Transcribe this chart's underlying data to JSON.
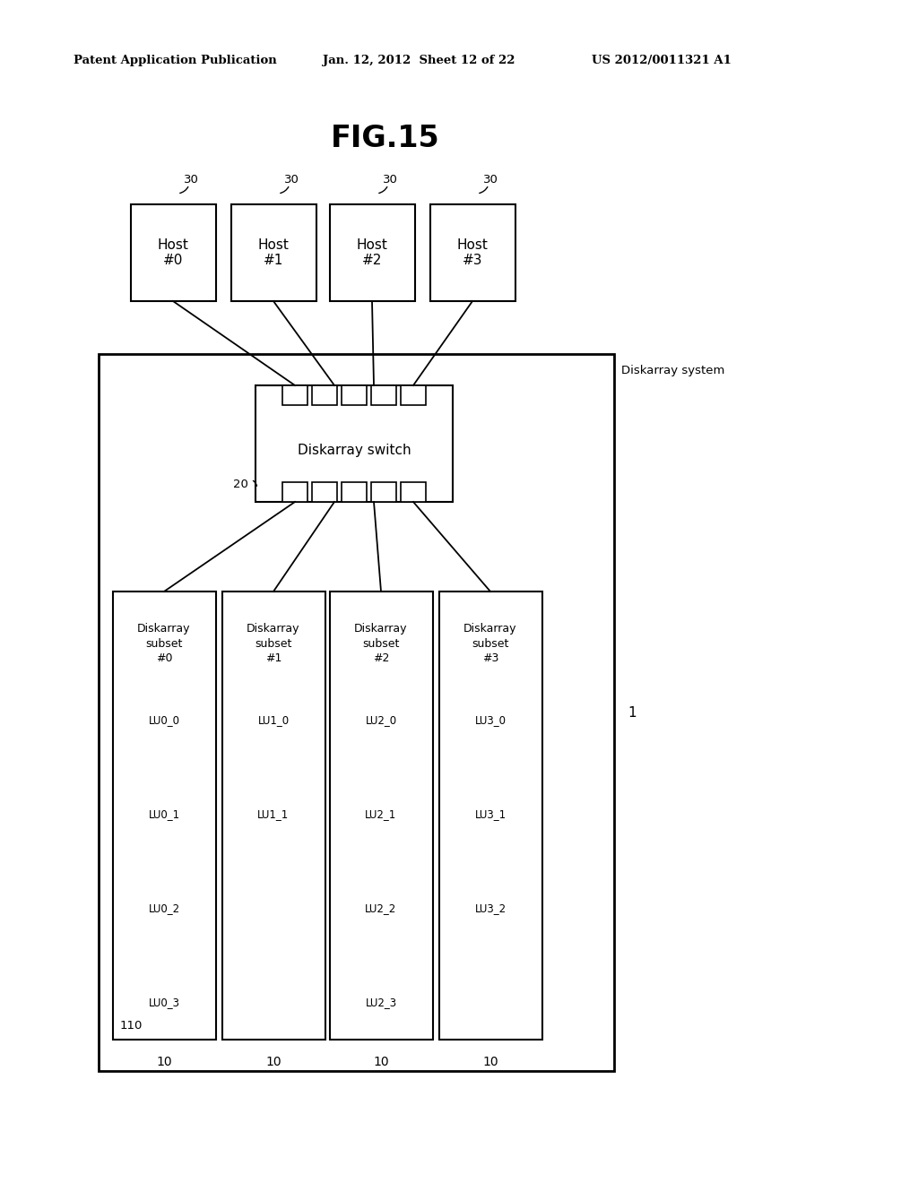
{
  "background_color": "#ffffff",
  "header_left": "Patent Application Publication",
  "header_mid": "Jan. 12, 2012  Sheet 12 of 22",
  "header_right": "US 2012/0011321 A1",
  "fig_title": "FIG.15",
  "hosts": [
    "Host\n#0",
    "Host\n#1",
    "Host\n#2",
    "Host\n#3"
  ],
  "host_label": "30",
  "switch_label": "20",
  "switch_text": "Diskarray switch",
  "system_label": "1",
  "system_text": "Diskarray system",
  "subsets": [
    "Diskarray\nsubset\n#0",
    "Diskarray\nsubset\n#1",
    "Diskarray\nsubset\n#2",
    "Diskarray\nsubset\n#3"
  ],
  "subset_label": "10",
  "subset_box_label": "110",
  "lus": [
    [
      "LU0_0",
      "LU0_1",
      "LU0_2",
      "LU0_3"
    ],
    [
      "LU1_0",
      "LU1_1"
    ],
    [
      "LU2_0",
      "LU2_1",
      "LU2_2",
      "LU2_3"
    ],
    [
      "LU3_0",
      "LU3_1",
      "LU3_2"
    ]
  ]
}
